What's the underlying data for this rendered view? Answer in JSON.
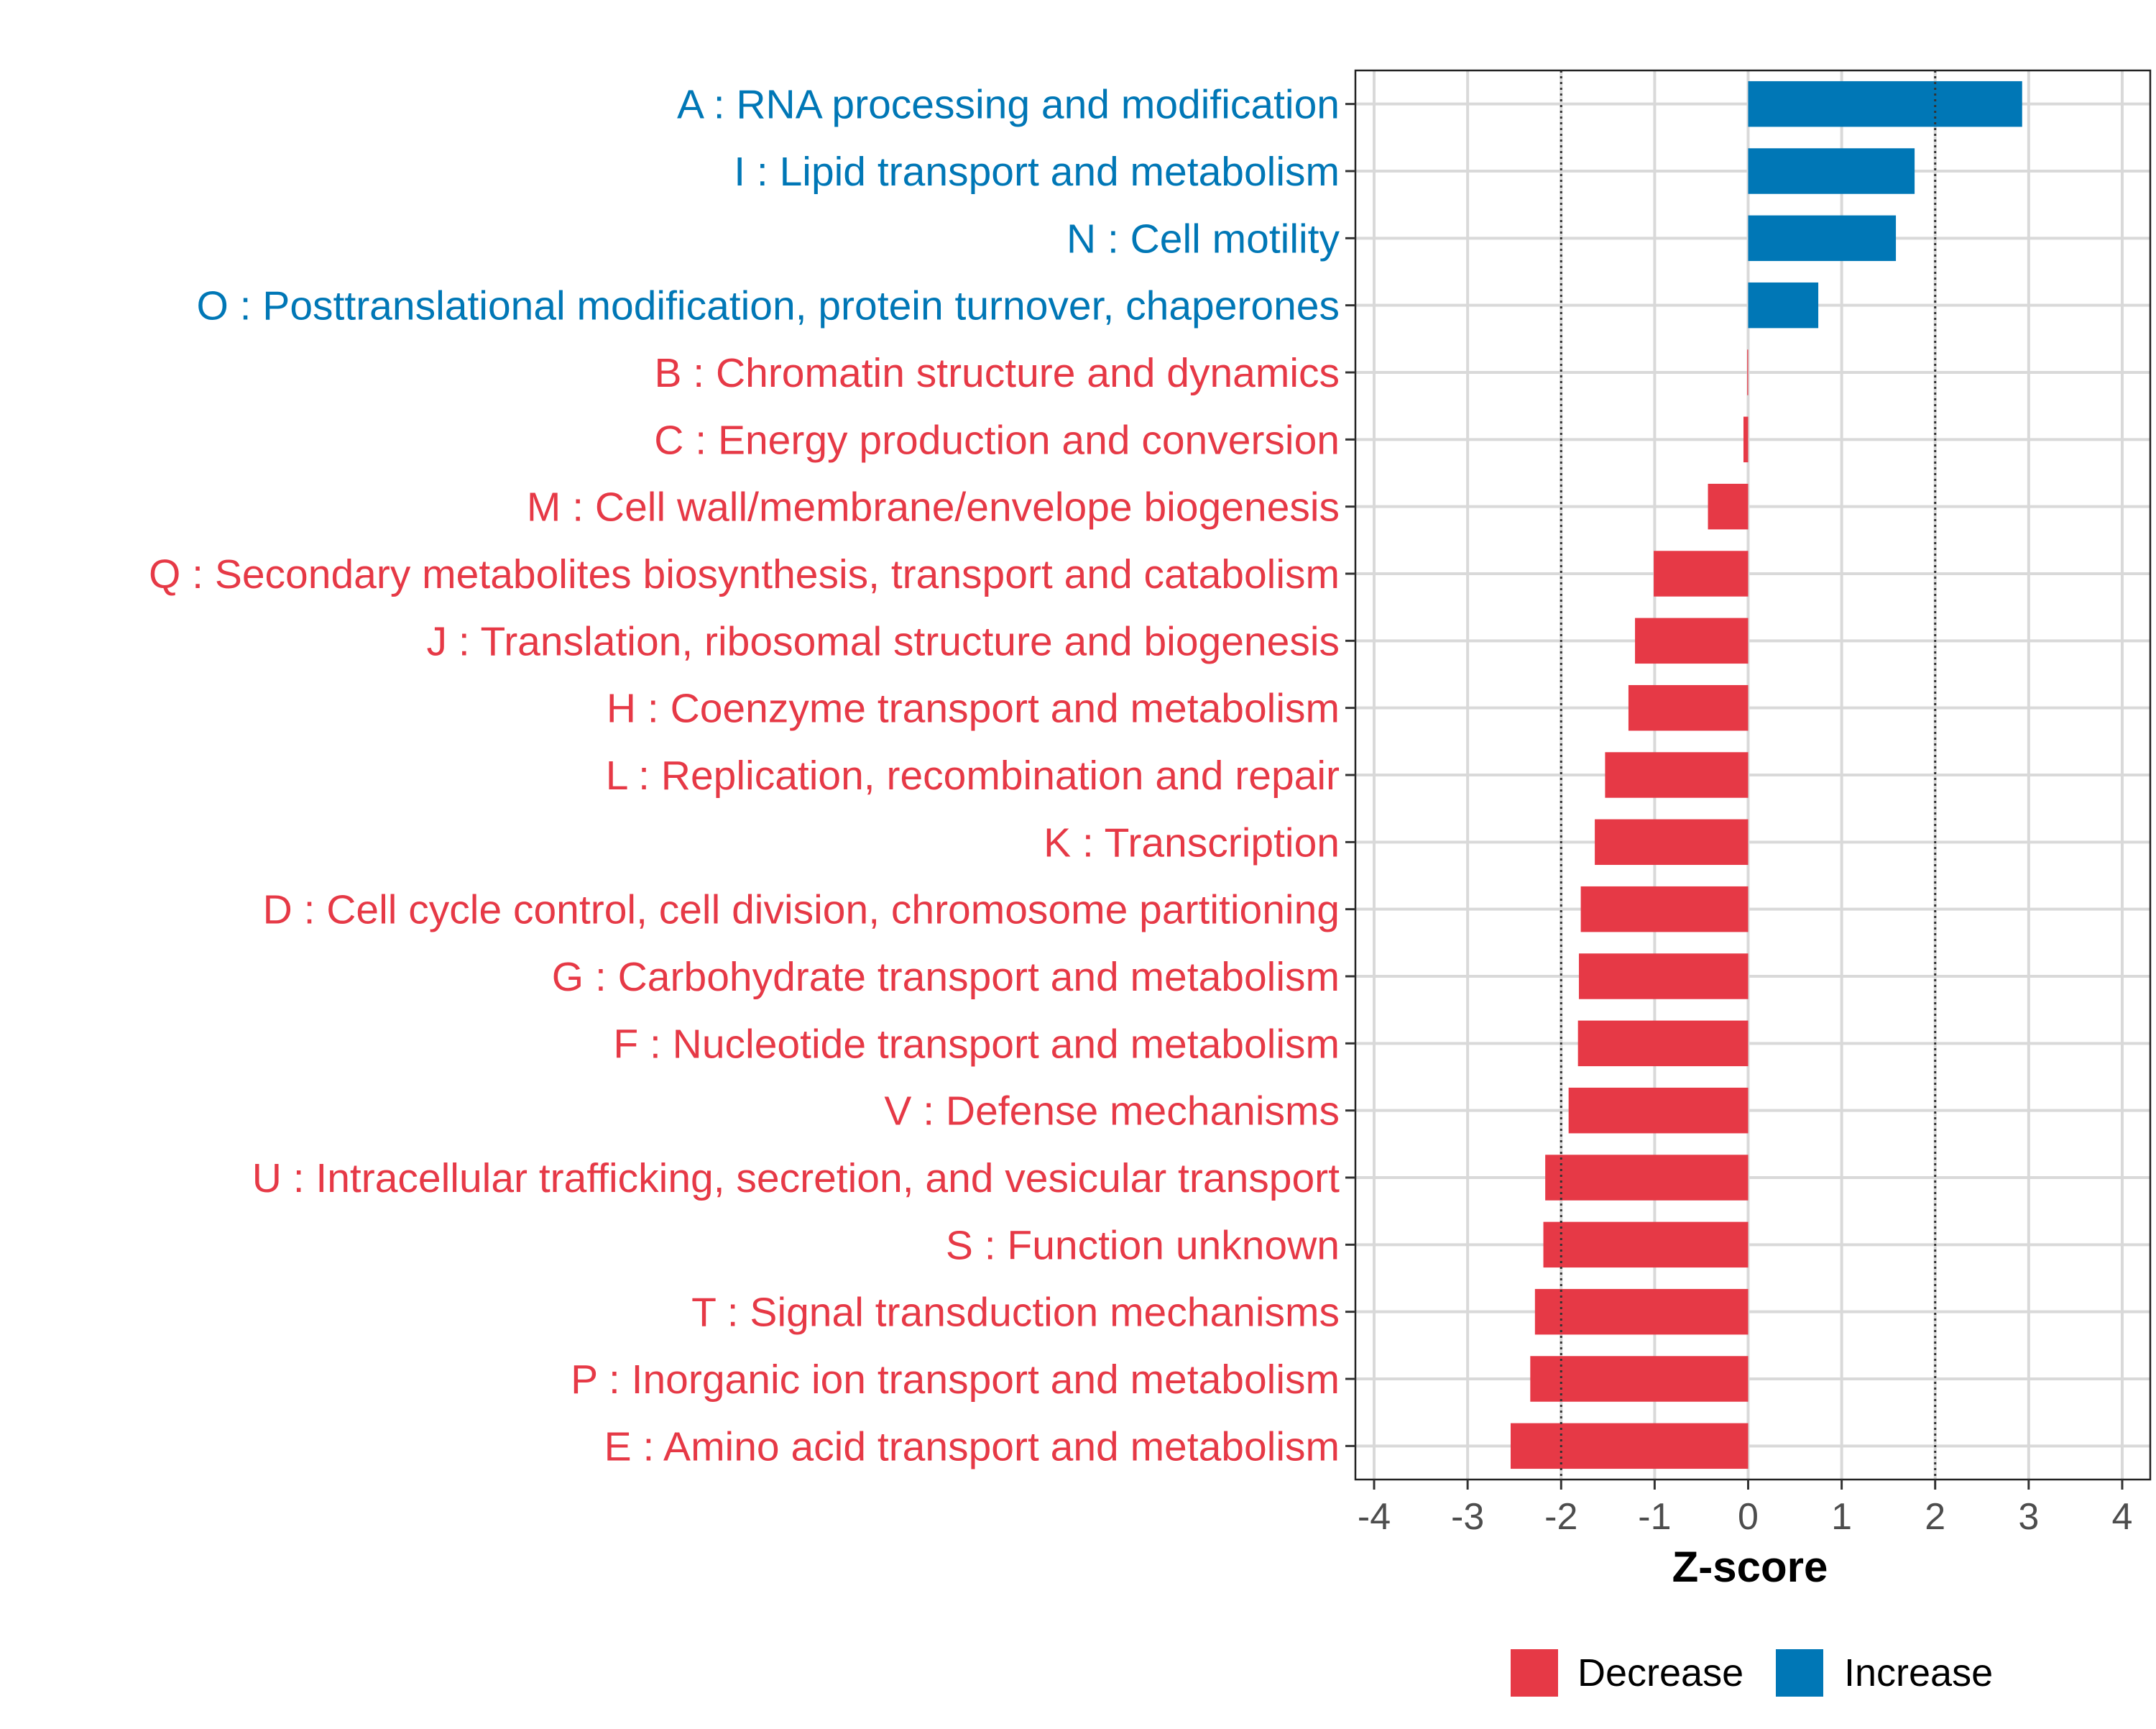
{
  "chart_data": {
    "type": "bar",
    "orientation": "horizontal",
    "title": "",
    "xlabel": "Z-score",
    "ylabel": "",
    "xlim": [
      -4.2,
      4.3
    ],
    "xticks": [
      -4,
      -3,
      -2,
      -1,
      0,
      1,
      2,
      3,
      4
    ],
    "xtick_labels": [
      "-4",
      "-3",
      "-2",
      "-1",
      "0",
      "1",
      "2",
      "3",
      "4"
    ],
    "reference_lines": [
      -2,
      2
    ],
    "grid": true,
    "legend_position": "bottom",
    "colors": {
      "Decrease": "#e63946",
      "Increase": "#0077b6"
    },
    "legend": [
      "Decrease",
      "Increase"
    ],
    "categories": [
      "A : RNA processing and modification",
      "I : Lipid transport and metabolism",
      "N : Cell motility",
      "O : Posttranslational modification, protein turnover, chaperones",
      "B : Chromatin structure and dynamics",
      "C : Energy production and conversion",
      "M : Cell wall/membrane/envelope biogenesis",
      "Q : Secondary metabolites biosynthesis, transport and catabolism",
      "J : Translation, ribosomal structure and biogenesis",
      "H : Coenzyme transport and metabolism",
      "L : Replication, recombination and repair",
      "K : Transcription",
      "D : Cell cycle control, cell division, chromosome partitioning",
      "G : Carbohydrate transport and metabolism",
      "F : Nucleotide transport and metabolism",
      "V : Defense mechanisms",
      "U : Intracellular trafficking, secretion, and vesicular transport",
      "S : Function unknown",
      "T : Signal transduction mechanisms",
      "P : Inorganic ion transport and metabolism",
      "E : Amino acid transport and metabolism"
    ],
    "values": [
      2.93,
      1.78,
      1.58,
      0.75,
      -0.01,
      -0.05,
      -0.43,
      -1.01,
      -1.21,
      -1.28,
      -1.53,
      -1.64,
      -1.79,
      -1.81,
      -1.82,
      -1.92,
      -2.17,
      -2.19,
      -2.28,
      -2.33,
      -2.54
    ],
    "groups": [
      "Increase",
      "Increase",
      "Increase",
      "Increase",
      "Decrease",
      "Decrease",
      "Decrease",
      "Decrease",
      "Decrease",
      "Decrease",
      "Decrease",
      "Decrease",
      "Decrease",
      "Decrease",
      "Decrease",
      "Decrease",
      "Decrease",
      "Decrease",
      "Decrease",
      "Decrease",
      "Decrease"
    ]
  }
}
